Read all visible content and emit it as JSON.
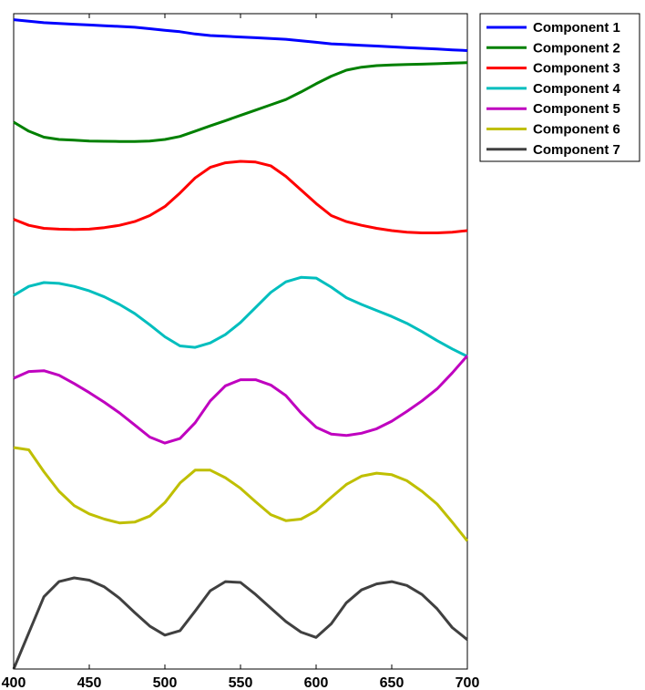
{
  "chart_data": {
    "type": "line",
    "title": "",
    "xlabel": "",
    "ylabel": "",
    "xlim": [
      400,
      700
    ],
    "ylim": [
      0,
      435
    ],
    "grid": false,
    "legend_position": "outside-top-right",
    "x_ticks": [
      400,
      450,
      500,
      550,
      600,
      650,
      700
    ],
    "x": [
      400,
      410,
      420,
      430,
      440,
      450,
      460,
      470,
      480,
      490,
      500,
      510,
      520,
      530,
      540,
      550,
      560,
      570,
      580,
      590,
      600,
      610,
      620,
      630,
      640,
      650,
      660,
      670,
      680,
      690,
      700
    ],
    "series": [
      {
        "name": "Component 1",
        "color": "#0000ff",
        "values": [
          431,
          430,
          429,
          428.5,
          428,
          427.5,
          427,
          426.5,
          426,
          425,
          424,
          423,
          421.5,
          420.5,
          420,
          419.5,
          419,
          418.5,
          418,
          417,
          416,
          415,
          414.5,
          414,
          413.5,
          413,
          412.5,
          412,
          411.5,
          411,
          410.5
        ]
      },
      {
        "name": "Component 2",
        "color": "#008000",
        "values": [
          363,
          357,
          353,
          351.5,
          351,
          350.5,
          350.3,
          350.2,
          350.2,
          350.5,
          351.5,
          353.5,
          357,
          360.5,
          364,
          367.5,
          371,
          374.5,
          378,
          383,
          388.5,
          393.5,
          397.5,
          399.5,
          400.5,
          401,
          401.3,
          401.5,
          401.8,
          402.2,
          402.5
        ]
      },
      {
        "name": "Component 3",
        "color": "#ff0000",
        "values": [
          298.5,
          294.5,
          292.5,
          292,
          291.8,
          292,
          293,
          294.5,
          297,
          301,
          307,
          316,
          326,
          333,
          336,
          337,
          336.5,
          334,
          327,
          318,
          309,
          301,
          297,
          294.5,
          292.5,
          291,
          290,
          289.5,
          289.5,
          290,
          291
        ]
      },
      {
        "name": "Component 4",
        "color": "#00bebe",
        "values": [
          248,
          254,
          256.5,
          256,
          254,
          251,
          247,
          242,
          236,
          228.5,
          220.5,
          214.5,
          213.5,
          216.5,
          222,
          230,
          240,
          250,
          257,
          260,
          259.5,
          253.5,
          246.5,
          242,
          238,
          234,
          229.5,
          224,
          218,
          212.5,
          207.5
        ]
      },
      {
        "name": "Component 5",
        "color": "#bf00bf",
        "values": [
          193,
          197.5,
          198,
          195,
          189.5,
          183.5,
          177,
          170,
          162,
          154,
          150,
          153,
          163.5,
          178,
          188,
          192,
          192,
          188.5,
          181.5,
          170,
          160.5,
          156,
          155,
          156.5,
          159.5,
          164.5,
          171,
          178,
          186,
          196.5,
          208
        ]
      },
      {
        "name": "Component 6",
        "color": "#bfbf00",
        "values": [
          147,
          145.5,
          131,
          118,
          108.5,
          103,
          99.5,
          97,
          97.5,
          101.5,
          110.5,
          123.5,
          132,
          132,
          127,
          120,
          111,
          102.5,
          98.5,
          99.5,
          105,
          114,
          122.5,
          128,
          130,
          129,
          125,
          118,
          109.5,
          97.5,
          85
        ]
      },
      {
        "name": "Component 7",
        "color": "#404040",
        "values": [
          0,
          24,
          48,
          58,
          60.5,
          59,
          54.5,
          47,
          37.5,
          28.5,
          22.5,
          25.5,
          38.5,
          52,
          58,
          57.5,
          49.5,
          40.5,
          31.5,
          24.5,
          21,
          30,
          44,
          52.5,
          56.5,
          58,
          55.5,
          49.5,
          40,
          27.5,
          19.5
        ]
      }
    ]
  }
}
